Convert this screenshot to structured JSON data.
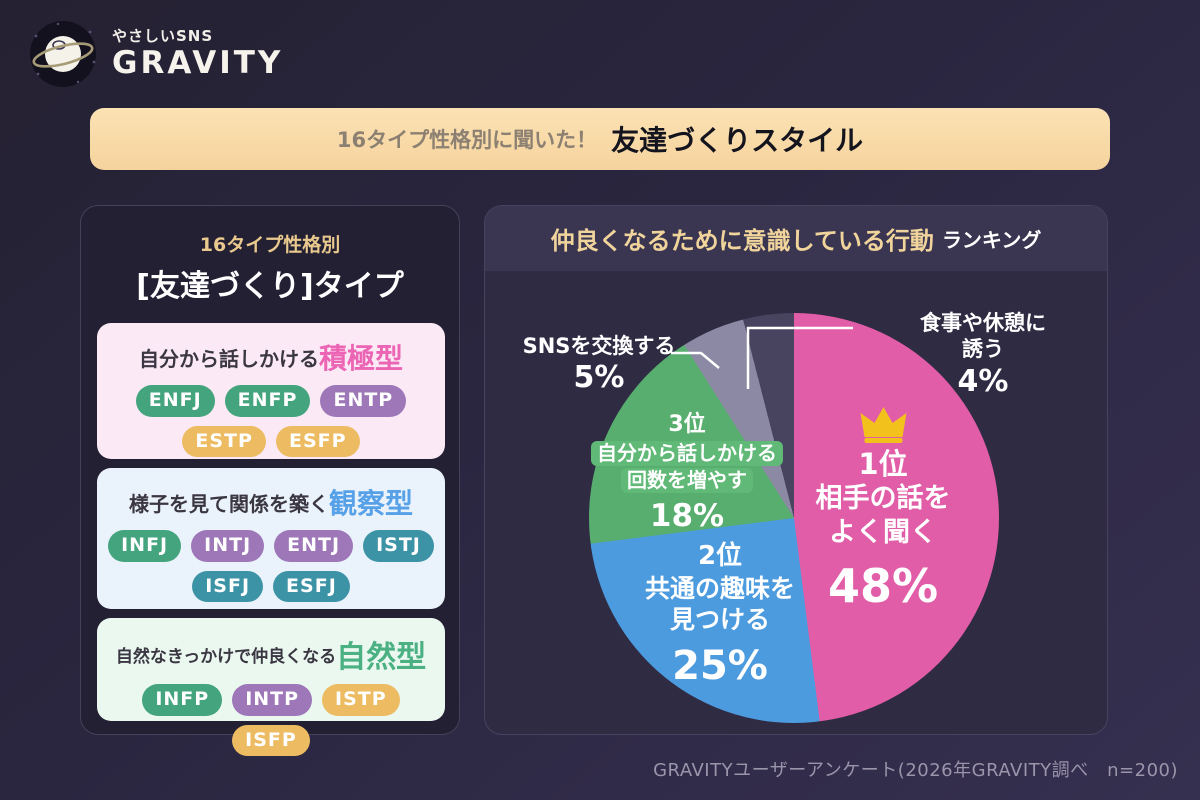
{
  "logo": {
    "tagline": "やさしいSNS",
    "brand": "GRAVITY"
  },
  "banner": {
    "prefix": "16タイプ性格別に聞いた！",
    "title": "友達づくりスタイル"
  },
  "left_panel": {
    "subtitle": "16タイプ性格別",
    "title": "[友達づくり]タイプ",
    "cards": [
      {
        "desc": "自分から話しかける",
        "type_label": "積極型",
        "type_color": "#ec64b4",
        "bg": "#fbe9f5",
        "badges": [
          {
            "label": "ENFJ",
            "color": "#43a47d"
          },
          {
            "label": "ENFP",
            "color": "#43a47d"
          },
          {
            "label": "ENTP",
            "color": "#9d77b8"
          },
          {
            "label": "ESTP",
            "color": "#edbc62"
          },
          {
            "label": "ESFP",
            "color": "#edbc62"
          }
        ]
      },
      {
        "desc": "様子を見て関係を築く",
        "type_label": "観察型",
        "type_color": "#57a1e8",
        "bg": "#eaf2fb",
        "badges": [
          {
            "label": "INFJ",
            "color": "#43a47d"
          },
          {
            "label": "INTJ",
            "color": "#9d77b8"
          },
          {
            "label": "ENTJ",
            "color": "#9d77b8"
          },
          {
            "label": "ISTJ",
            "color": "#3d93a6"
          },
          {
            "label": "ISFJ",
            "color": "#3d93a6"
          },
          {
            "label": "ESFJ",
            "color": "#3d93a6"
          }
        ]
      },
      {
        "desc": "自然なきっかけで仲良くなる",
        "type_label": "自然型",
        "type_color": "#4bb183",
        "bg": "#eaf8f0",
        "badges": [
          {
            "label": "INFP",
            "color": "#43a47d"
          },
          {
            "label": "INTP",
            "color": "#9d77b8"
          },
          {
            "label": "ISTP",
            "color": "#edbc62"
          },
          {
            "label": "ISFP",
            "color": "#edbc62"
          }
        ]
      }
    ]
  },
  "right_panel": {
    "title_em": "仲良くなるために意識している行動",
    "title_rest": "ランキング"
  },
  "chart_data": {
    "type": "pie",
    "title": "仲良くなるために意識している行動ランキング",
    "direction": "clockwise",
    "start_angle_deg": 0,
    "legend": "none",
    "slices": [
      {
        "rank": "1位",
        "label": "相手の話をよく聞く",
        "label_lines": [
          "相手の話を",
          "よく聞く"
        ],
        "value": 48,
        "pct": "48%",
        "color": "#e25da7",
        "crowned": true
      },
      {
        "rank": "2位",
        "label": "共通の趣味を見つける",
        "label_lines": [
          "共通の趣味を",
          "見つける"
        ],
        "value": 25,
        "pct": "25%",
        "color": "#4c9bdf"
      },
      {
        "rank": "3位",
        "label": "自分から話しかける回数を増やす",
        "label_lines": [
          "自分から話しかける",
          "回数を増やす"
        ],
        "value": 18,
        "pct": "18%",
        "color": "#57ae6e"
      },
      {
        "rank": "",
        "label": "SNSを交換する",
        "label_lines": [
          "SNSを交換する"
        ],
        "value": 5,
        "pct": "5%",
        "color": "#8b89a3"
      },
      {
        "rank": "",
        "label": "食事や休憩に誘う",
        "label_lines": [
          "食事や休憩に誘う"
        ],
        "value": 4,
        "pct": "4%",
        "color": "#484460"
      }
    ]
  },
  "footer": {
    "source": "GRAVITYユーザーアンケート(2026年GRAVITY調べ　n=200)"
  }
}
